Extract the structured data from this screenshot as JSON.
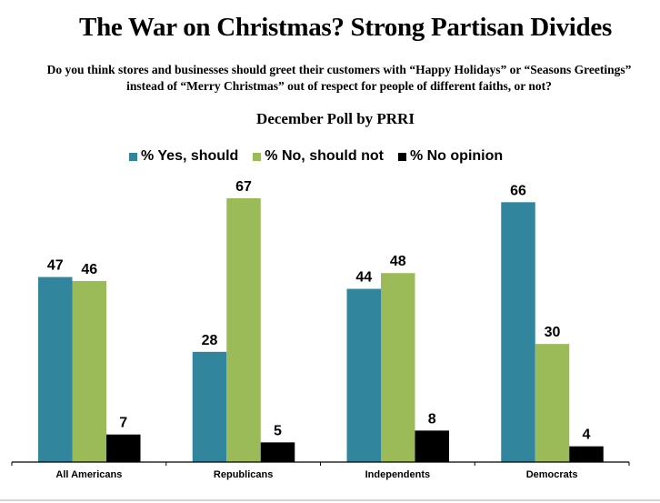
{
  "chart_data": {
    "type": "bar",
    "title": "The War on Christmas? Strong Partisan Divides",
    "subtitle_lines": [
      "Do you think stores and businesses should greet their customers with “Happy Holidays” or “Seasons Greetings”",
      "instead of “Merry Christmas” out of respect for people of different faiths, or not?"
    ],
    "source_label": "December Poll by PRRI",
    "xlabel": "",
    "ylabel": "",
    "ylim": [
      0,
      67
    ],
    "grid": false,
    "legend_position": "top-center",
    "categories": [
      "All Americans",
      "Republicans",
      "Independents",
      "Democrats"
    ],
    "series": [
      {
        "name": "% Yes, should",
        "color": "#31859C",
        "values": [
          47,
          28,
          44,
          66
        ]
      },
      {
        "name": "% No, should not",
        "color": "#9BBB59",
        "values": [
          46,
          67,
          48,
          30
        ]
      },
      {
        "name": "% No opinion",
        "color": "#000000",
        "values": [
          7,
          5,
          8,
          4
        ]
      }
    ]
  }
}
